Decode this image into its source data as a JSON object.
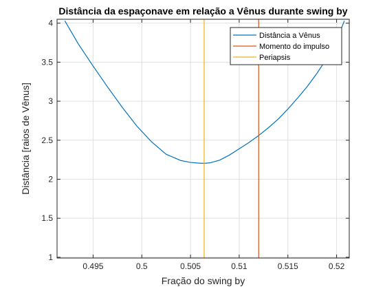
{
  "chart_data": {
    "type": "line",
    "title": "Distância da espaçonave em relação a Vênus durante swing by",
    "xlabel": "Fração do swing by",
    "ylabel": "Distância [raios de Vênus]",
    "xlim": [
      0.4913,
      0.5213
    ],
    "ylim": [
      0.99,
      4.05
    ],
    "x_ticks": [
      0.495,
      0.5,
      0.505,
      0.51,
      0.515,
      0.52
    ],
    "x_tick_labels": [
      "0.495",
      "0.5",
      "0.505",
      "0.51",
      "0.515",
      "0.52"
    ],
    "y_ticks": [
      1,
      1.5,
      2,
      2.5,
      3,
      3.5,
      4
    ],
    "y_tick_labels": [
      "1",
      "1.5",
      "2",
      "2.5",
      "3",
      "3.5",
      "4"
    ],
    "grid": true,
    "legend_position": "top-right",
    "series": [
      {
        "name": "Distância a Vênus",
        "color": "#0072BD",
        "kind": "line",
        "x": [
          0.4921,
          0.4935,
          0.495,
          0.4965,
          0.498,
          0.4995,
          0.501,
          0.5025,
          0.504,
          0.505,
          0.506,
          0.5065,
          0.507,
          0.508,
          0.509,
          0.51,
          0.511,
          0.512,
          0.513,
          0.514,
          0.515,
          0.516,
          0.517,
          0.518,
          0.519,
          0.52,
          0.5208
        ],
        "y": [
          4.03,
          3.73,
          3.45,
          3.18,
          2.92,
          2.68,
          2.48,
          2.32,
          2.24,
          2.215,
          2.205,
          2.205,
          2.21,
          2.245,
          2.31,
          2.39,
          2.47,
          2.56,
          2.66,
          2.77,
          2.9,
          3.04,
          3.19,
          3.36,
          3.55,
          3.78,
          4.03
        ]
      },
      {
        "name": "Momento do impulso",
        "color": "#D95319",
        "kind": "vline",
        "x": [
          0.512,
          0.512
        ],
        "y": [
          0.99,
          4.05
        ]
      },
      {
        "name": "Periapsis",
        "color": "#EDB120",
        "kind": "vline",
        "x": [
          0.5064,
          0.5064
        ],
        "y": [
          0.99,
          4.05
        ]
      }
    ]
  }
}
